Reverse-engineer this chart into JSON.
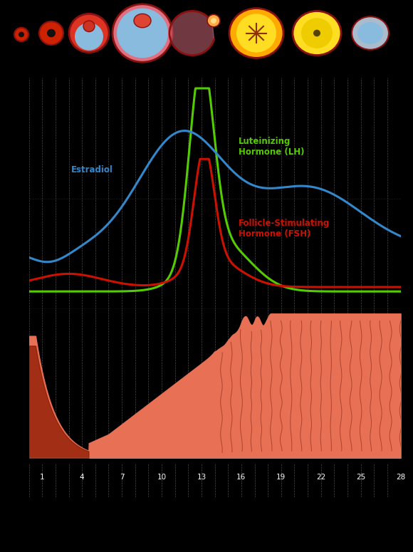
{
  "background_color": "#000000",
  "lh_color": "#55cc00",
  "fsh_color": "#cc1100",
  "estradiol_color": "#3388cc",
  "uterus_fill": "#e87055",
  "uterus_dark": "#8b1a00",
  "uterus_gland": "#c04030",
  "grid_color": "#555555",
  "lh_label": "Luteinizing\nHormone (LH)",
  "fsh_label": "Follicle-Stimulating\nHormone (FSH)",
  "estradiol_label": "Estradiol",
  "days": 28
}
